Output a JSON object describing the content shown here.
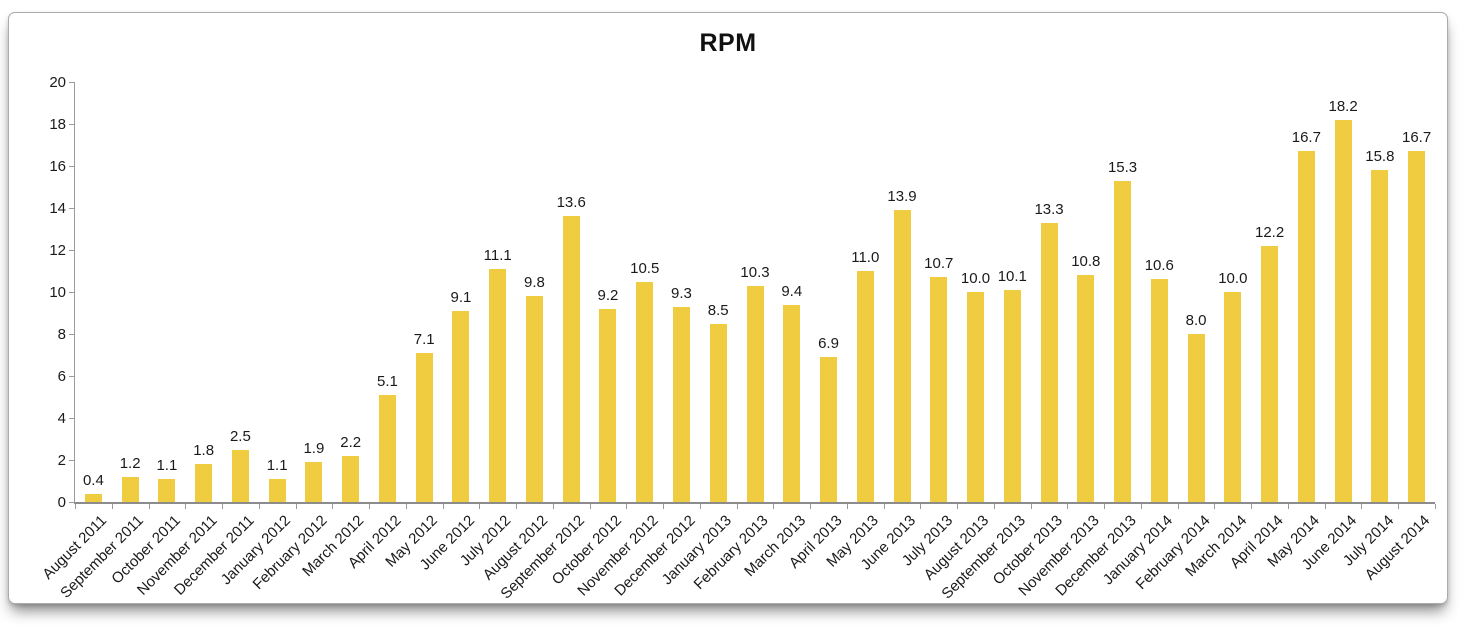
{
  "chart_data": {
    "type": "bar",
    "title": "RPM",
    "categories": [
      "August 2011",
      "September 2011",
      "October 2011",
      "November 2011",
      "December 2011",
      "January 2012",
      "February 2012",
      "March 2012",
      "April 2012",
      "May 2012",
      "June 2012",
      "July 2012",
      "August 2012",
      "September 2012",
      "October 2012",
      "November 2012",
      "December 2012",
      "January 2013",
      "February 2013",
      "March 2013",
      "April 2013",
      "May 2013",
      "June 2013",
      "July 2013",
      "August 2013",
      "September 2013",
      "October 2013",
      "November 2013",
      "December 2013",
      "January 2014",
      "February 2014",
      "March 2014",
      "April 2014",
      "May 2014",
      "June 2014",
      "July 2014",
      "August 2014"
    ],
    "values": [
      0.4,
      1.2,
      1.1,
      1.8,
      2.5,
      1.1,
      1.9,
      2.2,
      5.1,
      7.1,
      9.1,
      11.1,
      9.8,
      13.6,
      9.2,
      10.5,
      9.3,
      8.5,
      10.3,
      9.4,
      6.9,
      11.0,
      13.9,
      10.7,
      10.0,
      10.1,
      13.3,
      10.8,
      15.3,
      10.6,
      8.0,
      10.0,
      12.2,
      16.7,
      18.2,
      15.8,
      16.7
    ],
    "value_labels": [
      "0.4",
      "1.2",
      "1.1",
      "1.8",
      "2.5",
      "1.1",
      "1.9",
      "2.2",
      "5.1",
      "7.1",
      "9.1",
      "11.1",
      "9.8",
      "13.6",
      "9.2",
      "10.5",
      "9.3",
      "8.5",
      "10.3",
      "9.4",
      "6.9",
      "11.0",
      "13.9",
      "10.7",
      "10.0",
      "10.1",
      "13.3",
      "10.8",
      "15.3",
      "10.6",
      "8.0",
      "10.0",
      "12.2",
      "16.7",
      "18.2",
      "15.8",
      "16.7"
    ],
    "xlabel": "",
    "ylabel": "",
    "ylim": [
      0,
      20
    ],
    "ytick_step": 2,
    "yticks": [
      0,
      2,
      4,
      6,
      8,
      10,
      12,
      14,
      16,
      18,
      20
    ],
    "grid": false,
    "legend": "none",
    "bar_color": "#F0CC40",
    "axis_color": "#9a9a9a",
    "label_color": "#1a1a1a"
  }
}
